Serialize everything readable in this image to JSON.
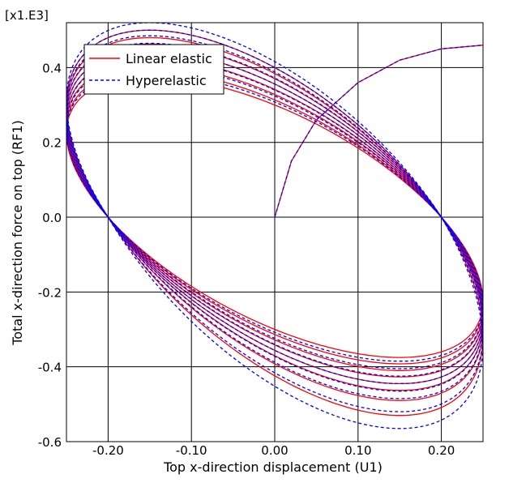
{
  "chart_data": {
    "type": "line",
    "title": "",
    "xlabel": "Top x-direction displacement (U1)",
    "ylabel": "Total x-direction force on top (RF1)",
    "y_multiplier": "[x1.E3]",
    "xlim": [
      -0.25,
      0.25
    ],
    "ylim": [
      -0.6,
      0.52
    ],
    "x_ticks": [
      -0.2,
      -0.1,
      0.0,
      0.1,
      0.2
    ],
    "x_tick_labels": [
      "-0.20",
      "-0.10",
      "0.00",
      "0.10",
      "0.20"
    ],
    "y_ticks": [
      -0.6,
      -0.4,
      -0.2,
      0.0,
      0.2,
      0.4
    ],
    "y_tick_labels": [
      "-0.6",
      "-0.4",
      "-0.2",
      "0.0",
      "0.2",
      "0.4"
    ],
    "grid": true,
    "legend": {
      "placement": "top-left",
      "entries": [
        "Linear elastic",
        "Hyperelastic"
      ]
    },
    "colors": {
      "linear": "#ff0000",
      "hyper": "#0000ff"
    },
    "cycles": 8,
    "series": [
      {
        "name": "Linear elastic",
        "style": "solid",
        "initial_loading": {
          "x": [
            0.0,
            0.02,
            0.05,
            0.1,
            0.15,
            0.2,
            0.25
          ],
          "y": [
            0.0,
            0.15,
            0.26,
            0.36,
            0.42,
            0.45,
            0.46
          ]
        },
        "peak_force_per_cycle": [
          0.375,
          0.392,
          0.41,
          0.427,
          0.445,
          0.463,
          0.48,
          0.5
        ],
        "trough_force_per_cycle": [
          -0.375,
          -0.392,
          -0.41,
          -0.427,
          -0.445,
          -0.463,
          -0.49,
          -0.53
        ],
        "zero_crossings_x": [
          -0.2,
          0.2
        ]
      },
      {
        "name": "Hyperelastic",
        "style": "dashed",
        "initial_loading": {
          "x": [
            0.0,
            0.02,
            0.05,
            0.1,
            0.15,
            0.2,
            0.25
          ],
          "y": [
            0.0,
            0.15,
            0.26,
            0.36,
            0.42,
            0.45,
            0.46
          ]
        },
        "peak_force_per_cycle": [
          0.385,
          0.405,
          0.425,
          0.445,
          0.465,
          0.485,
          0.5,
          0.52
        ],
        "trough_force_per_cycle": [
          -0.385,
          -0.405,
          -0.425,
          -0.445,
          -0.465,
          -0.485,
          -0.52,
          -0.565
        ],
        "zero_crossings_x": [
          -0.2,
          0.2
        ]
      }
    ]
  }
}
